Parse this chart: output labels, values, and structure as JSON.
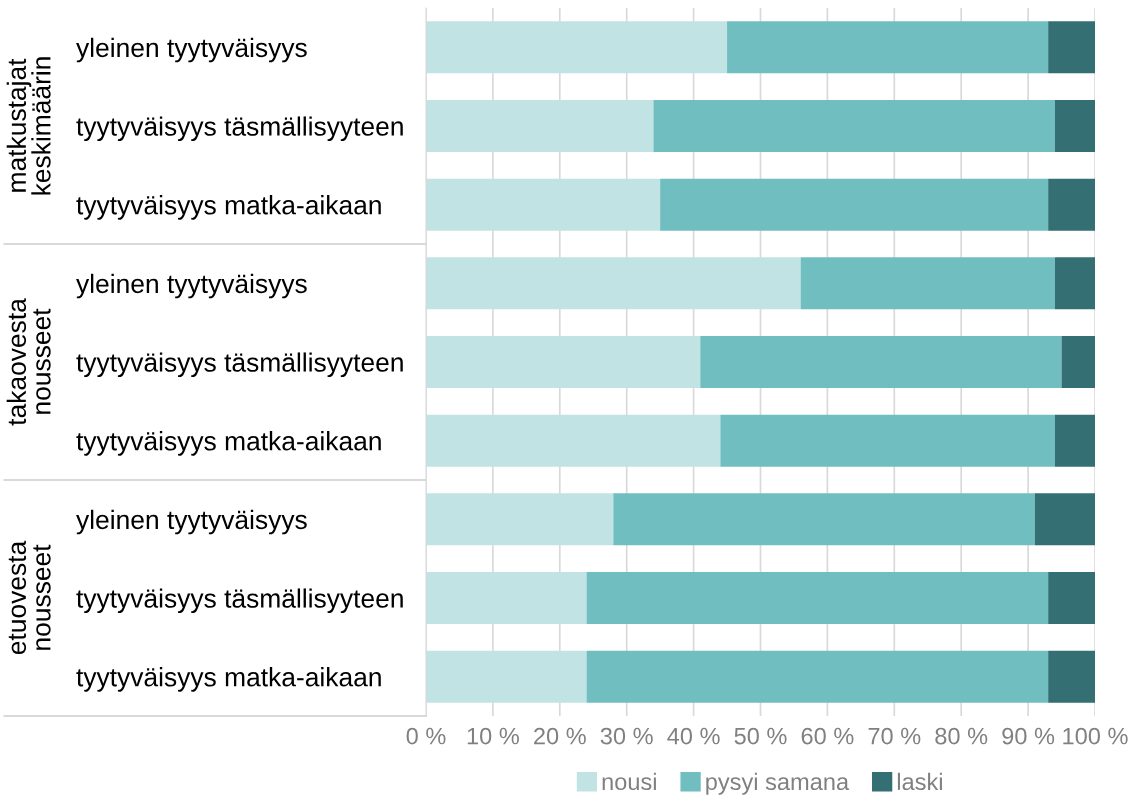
{
  "chart_data": {
    "type": "bar",
    "orientation": "horizontal",
    "stacked": true,
    "categories": [
      "yleinen tyytyväisyys",
      "tyytyväisyys täsmällisyyteen",
      "tyytyväisyys matka-aikaan",
      "yleinen tyytyväisyys",
      "tyytyväisyys täsmällisyyteen",
      "tyytyväisyys matka-aikaan",
      "yleinen tyytyväisyys",
      "tyytyväisyys täsmällisyyteen",
      "tyytyväisyys matka-aikaan"
    ],
    "series": [
      {
        "name": "nousi",
        "color": "#c2e3e4",
        "values": [
          45,
          34,
          35,
          56,
          41,
          44,
          28,
          24,
          24
        ]
      },
      {
        "name": "pysyi samana",
        "color": "#70bec0",
        "values": [
          48,
          60,
          58,
          38,
          54,
          50,
          63,
          69,
          69
        ]
      },
      {
        "name": "laski",
        "color": "#336f73",
        "values": [
          7,
          6,
          7,
          6,
          5,
          6,
          9,
          7,
          7
        ]
      }
    ],
    "xlim": [
      0,
      100
    ],
    "xticks": [
      {
        "value": 0,
        "label": "0 %"
      },
      {
        "value": 10,
        "label": "10 %"
      },
      {
        "value": 20,
        "label": "20 %"
      },
      {
        "value": 30,
        "label": "30 %"
      },
      {
        "value": 40,
        "label": "40 %"
      },
      {
        "value": 50,
        "label": "50 %"
      },
      {
        "value": 60,
        "label": "60 %"
      },
      {
        "value": 70,
        "label": "70 %"
      },
      {
        "value": 80,
        "label": "80 %"
      },
      {
        "value": 90,
        "label": "90 %"
      },
      {
        "value": 100,
        "label": "100 %"
      }
    ],
    "grid": "x",
    "legend": "bottom",
    "annotations": [
      "matkustajat\nkeskimäärin",
      "takaovesta\nnousseet",
      "etuovesta\nnousseet"
    ]
  }
}
